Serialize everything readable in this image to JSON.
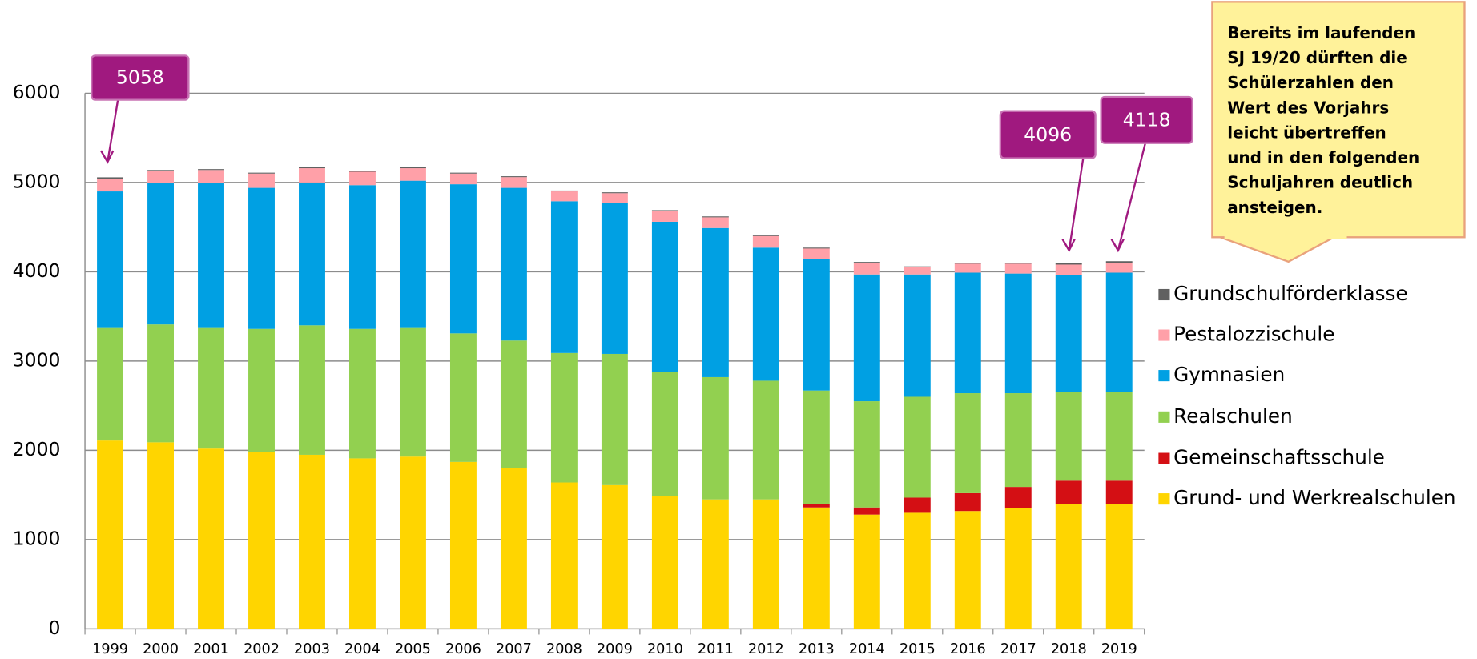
{
  "chart_data": {
    "type": "stacked_bar",
    "categories": [
      "1999",
      "2000",
      "2001",
      "2002",
      "2003",
      "2004",
      "2005",
      "2006",
      "2007",
      "2008",
      "2009",
      "2010",
      "2011",
      "2012",
      "2013",
      "2014",
      "2015",
      "2016",
      "2017",
      "2018",
      "2019"
    ],
    "series": [
      {
        "name": "Grund- und Werkrealschulen",
        "color": "#ffd500",
        "values": [
          2110,
          2090,
          2020,
          1980,
          1950,
          1910,
          1930,
          1870,
          1800,
          1640,
          1610,
          1490,
          1450,
          1450,
          1360,
          1280,
          1300,
          1320,
          1350,
          1400,
          1400
        ]
      },
      {
        "name": "Gemeinschaftsschule",
        "color": "#d40f14",
        "values": [
          0,
          0,
          0,
          0,
          0,
          0,
          0,
          0,
          0,
          0,
          0,
          0,
          0,
          0,
          40,
          80,
          170,
          200,
          240,
          260,
          260
        ]
      },
      {
        "name": "Realschulen",
        "color": "#92d050",
        "values": [
          1260,
          1320,
          1350,
          1380,
          1450,
          1450,
          1440,
          1440,
          1430,
          1450,
          1470,
          1390,
          1370,
          1330,
          1270,
          1190,
          1130,
          1120,
          1050,
          990,
          990
        ]
      },
      {
        "name": "Gymnasien",
        "color": "#00a0e3",
        "values": [
          1530,
          1580,
          1620,
          1580,
          1600,
          1610,
          1650,
          1670,
          1710,
          1700,
          1690,
          1680,
          1670,
          1490,
          1470,
          1420,
          1370,
          1350,
          1340,
          1310,
          1340
        ]
      },
      {
        "name": "Pestalozzischule",
        "color": "#ffa0a8",
        "values": [
          140,
          140,
          150,
          160,
          160,
          150,
          140,
          120,
          120,
          110,
          110,
          120,
          120,
          130,
          120,
          130,
          80,
          100,
          110,
          120,
          110
        ]
      },
      {
        "name": "Grundschulförderklasse",
        "color": "#606060",
        "values": [
          18,
          10,
          10,
          10,
          10,
          10,
          10,
          10,
          10,
          10,
          10,
          10,
          10,
          10,
          10,
          10,
          10,
          10,
          10,
          16,
          18
        ]
      }
    ],
    "ylim": [
      0,
      6000
    ],
    "yticks": [
      0,
      1000,
      2000,
      3000,
      4000,
      5000,
      6000
    ],
    "grid": true,
    "legend": "right",
    "annotations": [
      {
        "text": "5058",
        "category": "1999"
      },
      {
        "text": "4096",
        "category": "2018"
      },
      {
        "text": "4118",
        "category": "2019"
      }
    ],
    "note": [
      "Bereits im laufenden",
      "SJ 19/20 dürften die",
      "Schülerzahlen den",
      "Wert des Vorjahrs",
      "leicht übertreffen",
      "und in den folgenden",
      "Schuljahren deutlich",
      "ansteigen."
    ]
  }
}
